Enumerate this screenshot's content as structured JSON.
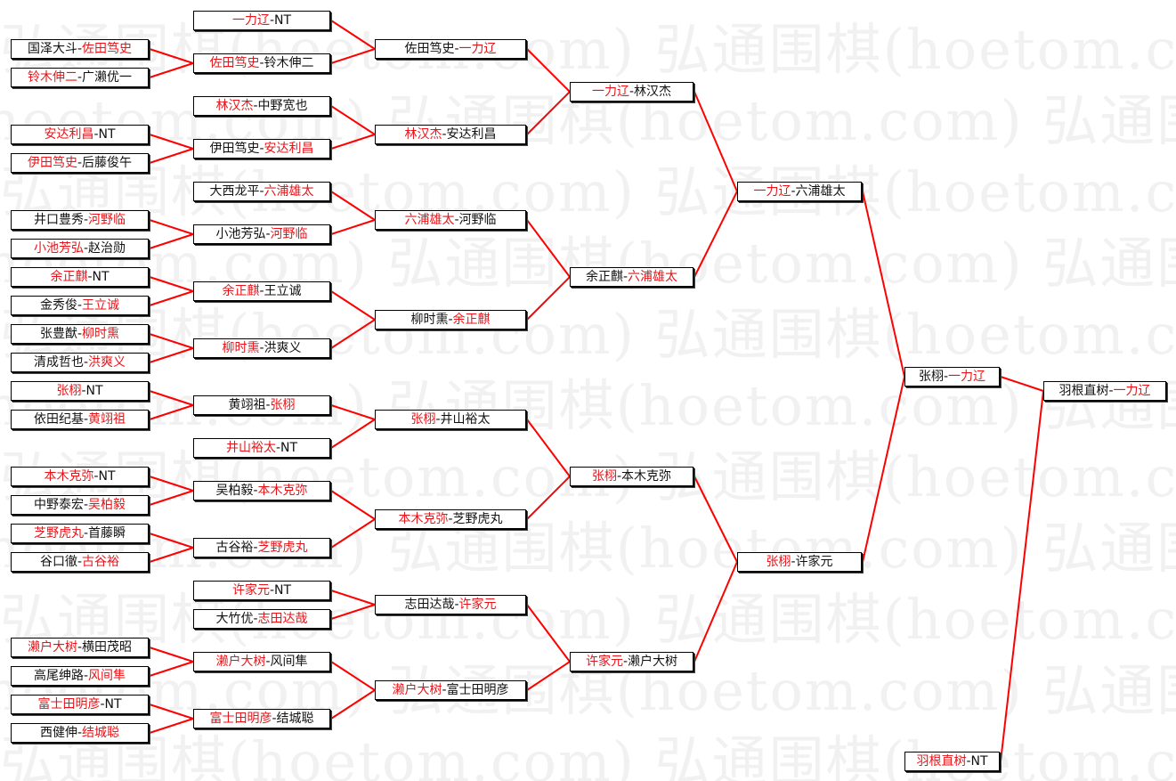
{
  "watermark": "弘通围棋(hoetom.com)",
  "colors": {
    "winner": "#e8141a",
    "line": "#ff0000",
    "text": "#111111"
  },
  "separator": "-",
  "rounds": [
    [
      {
        "a": "国泽大斗",
        "b": "佐田笃史",
        "win": "b"
      },
      {
        "a": "铃木伸二",
        "b": "广濑优一",
        "win": "a"
      },
      {
        "a": "安达利昌",
        "b": "NT",
        "win": "a"
      },
      {
        "a": "伊田笃史",
        "b": "后藤俊午",
        "win": "a"
      },
      {
        "a": "井口豊秀",
        "b": "河野临",
        "win": "b"
      },
      {
        "a": "小池芳弘",
        "b": "赵治勋",
        "win": "a"
      },
      {
        "a": "余正麒",
        "b": "NT",
        "win": "a"
      },
      {
        "a": "金秀俊",
        "b": "王立诚",
        "win": "b"
      },
      {
        "a": "张豊猷",
        "b": "柳时熏",
        "win": "b"
      },
      {
        "a": "清成哲也",
        "b": "洪爽义",
        "win": "b"
      },
      {
        "a": "张栩",
        "b": "NT",
        "win": "a"
      },
      {
        "a": "依田纪基",
        "b": "黄翊祖",
        "win": "b"
      },
      {
        "a": "本木克弥",
        "b": "NT",
        "win": "a"
      },
      {
        "a": "中野泰宏",
        "b": "吴柏毅",
        "win": "b"
      },
      {
        "a": "芝野虎丸",
        "b": "首藤瞬",
        "win": "a"
      },
      {
        "a": "谷口徹",
        "b": "古谷裕",
        "win": "b"
      },
      {
        "a": "濑户大树",
        "b": "横田茂昭",
        "win": "a"
      },
      {
        "a": "高尾绅路",
        "b": "风间隼",
        "win": "b"
      },
      {
        "a": "富士田明彦",
        "b": "NT",
        "win": "a"
      },
      {
        "a": "西健伸",
        "b": "结城聪",
        "win": "b"
      }
    ],
    [
      {
        "a": "一力辽",
        "b": "NT",
        "win": "a"
      },
      {
        "a": "佐田笃史",
        "b": "铃木伸二",
        "win": "a"
      },
      {
        "a": "林汉杰",
        "b": "中野宽也",
        "win": "a"
      },
      {
        "a": "伊田笃史",
        "b": "安达利昌",
        "win": "b"
      },
      {
        "a": "大西龙平",
        "b": "六浦雄太",
        "win": "b"
      },
      {
        "a": "小池芳弘",
        "b": "河野临",
        "win": "b"
      },
      {
        "a": "余正麒",
        "b": "王立诚",
        "win": "a"
      },
      {
        "a": "柳时熏",
        "b": "洪爽义",
        "win": "a"
      },
      {
        "a": "黄翊祖",
        "b": "张栩",
        "win": "b"
      },
      {
        "a": "井山裕太",
        "b": "NT",
        "win": "a"
      },
      {
        "a": "吴柏毅",
        "b": "本木克弥",
        "win": "b"
      },
      {
        "a": "古谷裕",
        "b": "芝野虎丸",
        "win": "b"
      },
      {
        "a": "许家元",
        "b": "NT",
        "win": "a"
      },
      {
        "a": "大竹优",
        "b": "志田达哉",
        "win": "b"
      },
      {
        "a": "濑户大树",
        "b": "风间隼",
        "win": "a"
      },
      {
        "a": "富士田明彦",
        "b": "结城聪",
        "win": "a"
      }
    ],
    [
      {
        "a": "佐田笃史",
        "b": "一力辽",
        "win": "b"
      },
      {
        "a": "林汉杰",
        "b": "安达利昌",
        "win": "a"
      },
      {
        "a": "六浦雄太",
        "b": "河野临",
        "win": "a"
      },
      {
        "a": "柳时熏",
        "b": "余正麒",
        "win": "b"
      },
      {
        "a": "张栩",
        "b": "井山裕太",
        "win": "a"
      },
      {
        "a": "本木克弥",
        "b": "芝野虎丸",
        "win": "a"
      },
      {
        "a": "志田达哉",
        "b": "许家元",
        "win": "b"
      },
      {
        "a": "濑户大树",
        "b": "富士田明彦",
        "win": "a"
      }
    ],
    [
      {
        "a": "一力辽",
        "b": "林汉杰",
        "win": "a"
      },
      {
        "a": "余正麒",
        "b": "六浦雄太",
        "win": "b"
      },
      {
        "a": "张栩",
        "b": "本木克弥",
        "win": "a"
      },
      {
        "a": "许家元",
        "b": "濑户大树",
        "win": "a"
      }
    ],
    [
      {
        "a": "一力辽",
        "b": "六浦雄太",
        "win": "a"
      },
      {
        "a": "张栩",
        "b": "许家元",
        "win": "a"
      }
    ],
    [
      {
        "a": "张栩",
        "b": "一力辽",
        "win": "b"
      },
      {
        "a": "羽根直树",
        "b": "NT",
        "win": "a"
      }
    ],
    [
      {
        "a": "羽根直树",
        "b": "一力辽",
        "win": "b"
      }
    ]
  ]
}
